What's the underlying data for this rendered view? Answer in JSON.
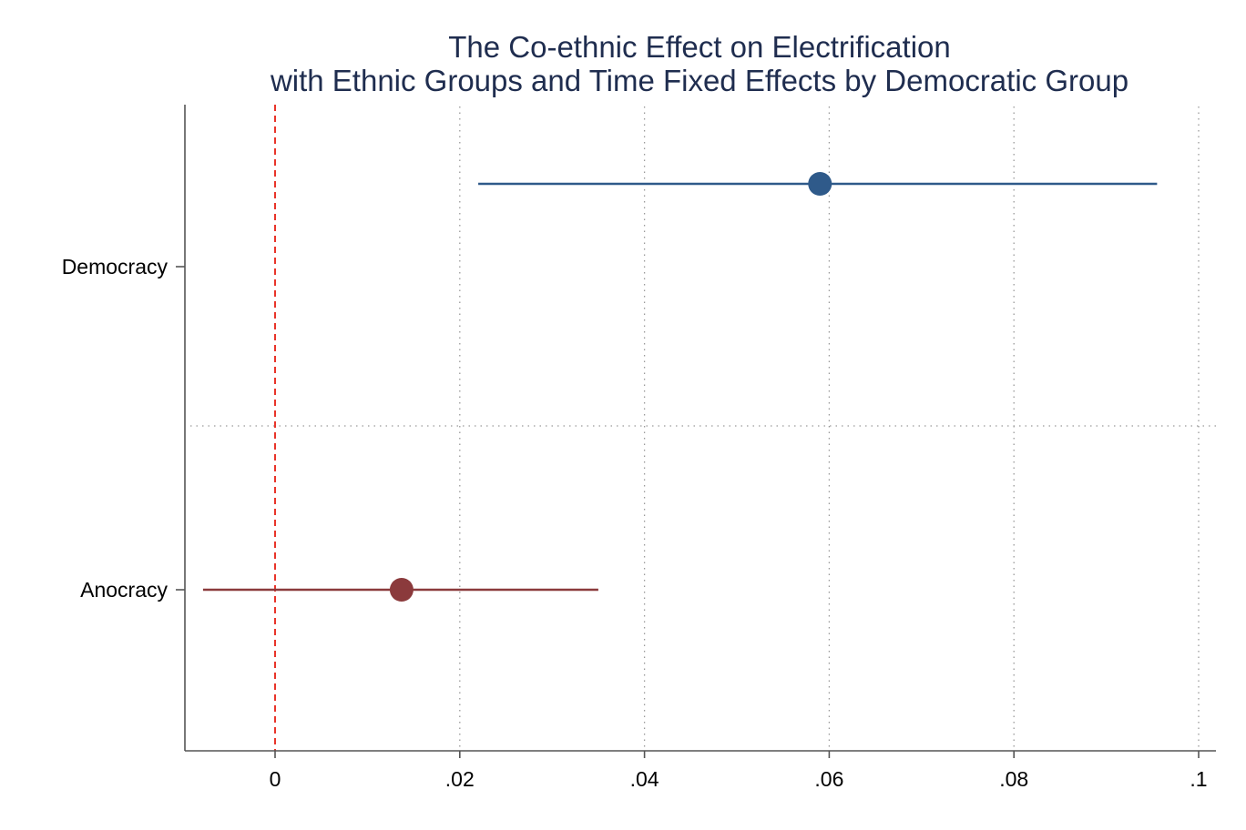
{
  "chart_data": {
    "type": "scatter",
    "subtype": "coefficient-plot",
    "title": [
      "The Co-ethnic Effect on Electrification",
      "with Ethnic Groups and Time Fixed Effects by Democratic Group"
    ],
    "xlabel": "",
    "ylabel": "",
    "xlim": [
      -0.01,
      0.1
    ],
    "x_ticks": [
      0,
      0.02,
      0.04,
      0.06,
      0.08,
      0.1
    ],
    "x_tick_labels": [
      "0",
      ".02",
      ".04",
      ".06",
      ".08",
      ".1"
    ],
    "grid": "vertical dotted at x ticks",
    "reference_line": {
      "x": 0,
      "style": "dashed",
      "color": "#e8342a"
    },
    "categories": [
      "Democracy",
      "Anocracy"
    ],
    "series": [
      {
        "category": "Democracy",
        "estimate": 0.059,
        "ci_low": 0.022,
        "ci_high": 0.0955,
        "color": "#2f5a8a"
      },
      {
        "category": "Anocracy",
        "estimate": 0.0137,
        "ci_low": -0.0078,
        "ci_high": 0.035,
        "color": "#8b3a3c"
      }
    ],
    "group_separator": true
  }
}
